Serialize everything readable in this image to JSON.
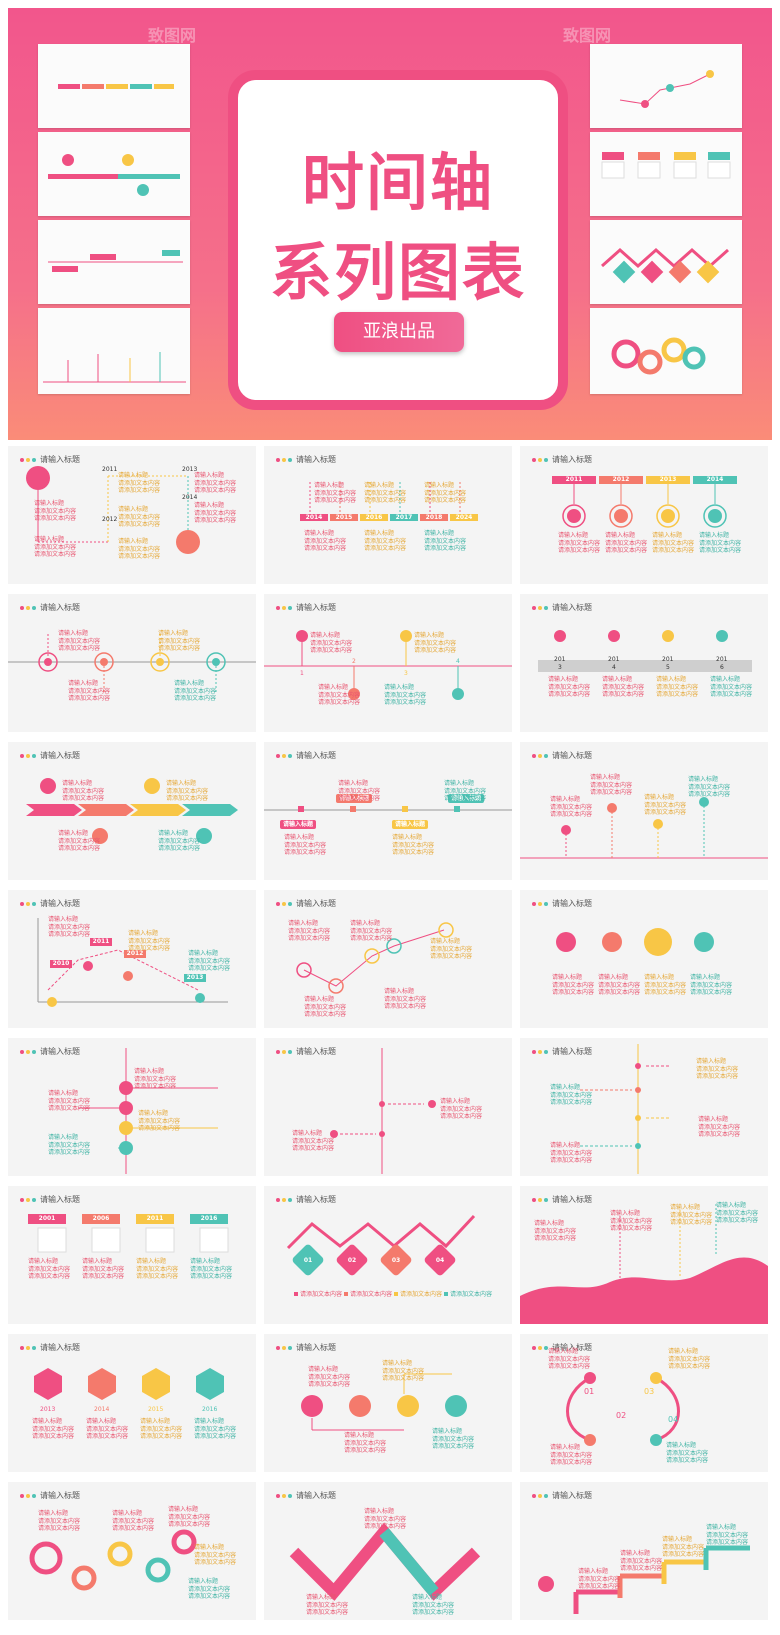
{
  "hero": {
    "title_line1": "时间轴",
    "title_line2": "系列图表",
    "author_button": "亚浪出品",
    "watermark": "致图网"
  },
  "slide_title": "请输入标题",
  "placeholders": {
    "heading": "请输入标题",
    "body": "请添加文本内容",
    "body_long": "请添加文本内容请添加文本内容",
    "heading_alt": "请输入文本内容",
    "body_alt": "请添加标题内容"
  },
  "years": {
    "set_a": [
      "2011",
      "2012",
      "2013",
      "2014"
    ],
    "set_b": [
      "2014",
      "2015",
      "2016",
      "2017",
      "2018",
      "2024"
    ],
    "set_c": [
      "2001",
      "2006",
      "2011",
      "2016"
    ],
    "set_d": [
      "2013",
      "2014",
      "2015",
      "2016"
    ],
    "set_e": [
      "2010",
      "2011",
      "2012",
      "2013",
      "2014"
    ],
    "split": [
      "201",
      "3",
      "201",
      "4",
      "201",
      "5",
      "201",
      "6"
    ]
  },
  "steps": {
    "numeric": [
      "1",
      "2",
      "3",
      "4"
    ],
    "padded": [
      "01",
      "02",
      "03",
      "04"
    ]
  },
  "colors": {
    "pink": "#ef4f82",
    "coral": "#f47a6c",
    "yellow": "#f8c646",
    "teal": "#4fc3b5",
    "grey": "#cfcfcf",
    "text_pink": "#e8546f",
    "text_yellow": "#e5a838",
    "text_teal": "#3fb3a4"
  }
}
